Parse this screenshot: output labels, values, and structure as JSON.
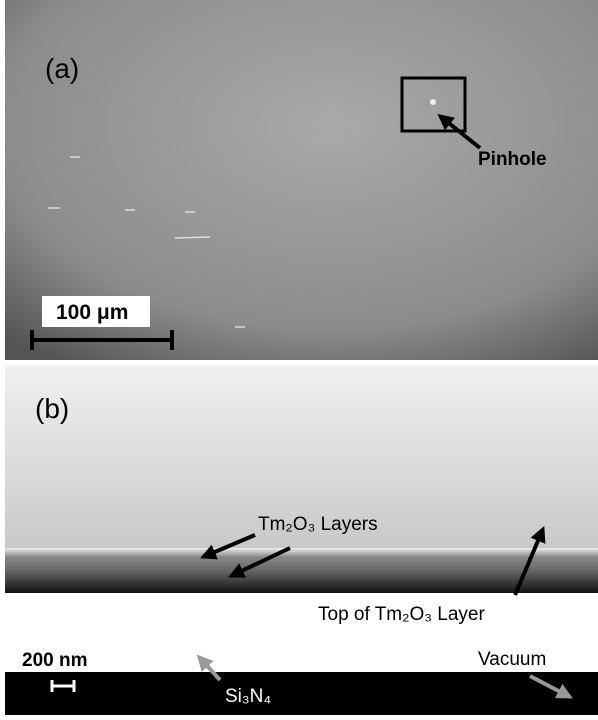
{
  "panel_a": {
    "label": "(a)",
    "annotation": "Pinhole",
    "scale_bar": "100 μm"
  },
  "panel_b": {
    "label": "(b)",
    "layers": "Tm₂O₃ Layers",
    "top_layer": "Top of Tm₂O₃ Layer",
    "scale_bar": "200 nm",
    "vacuum": "Vacuum",
    "substrate": "Si₃N₄"
  }
}
